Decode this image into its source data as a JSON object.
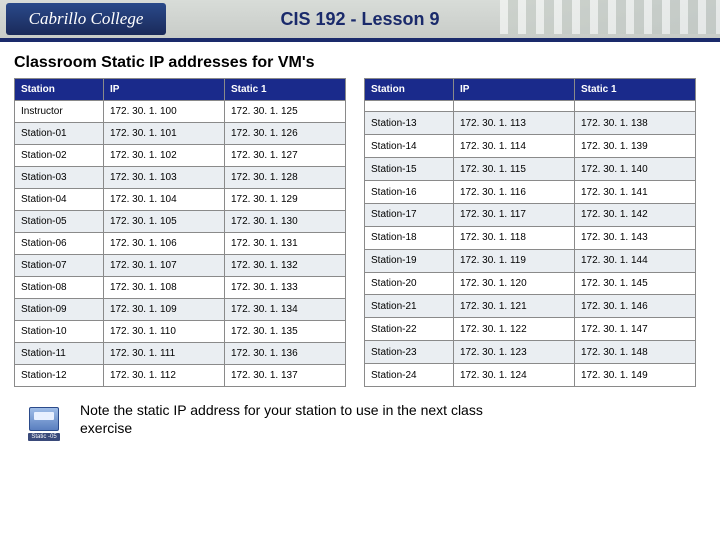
{
  "header": {
    "logo_text": "Cabrillo College",
    "title": "CIS 192 - Lesson 9"
  },
  "subtitle": "Classroom Static IP addresses for VM's",
  "columns": [
    "Station",
    "IP",
    "Static 1"
  ],
  "left_rows": [
    [
      "Instructor",
      "172. 30. 1. 100",
      "172. 30. 1. 125"
    ],
    [
      "Station-01",
      "172. 30. 1. 101",
      "172. 30. 1. 126"
    ],
    [
      "Station-02",
      "172. 30. 1. 102",
      "172. 30. 1. 127"
    ],
    [
      "Station-03",
      "172. 30. 1. 103",
      "172. 30. 1. 128"
    ],
    [
      "Station-04",
      "172. 30. 1. 104",
      "172. 30. 1. 129"
    ],
    [
      "Station-05",
      "172. 30. 1. 105",
      "172. 30. 1. 130"
    ],
    [
      "Station-06",
      "172. 30. 1. 106",
      "172. 30. 1. 131"
    ],
    [
      "Station-07",
      "172. 30. 1. 107",
      "172. 30. 1. 132"
    ],
    [
      "Station-08",
      "172. 30. 1. 108",
      "172. 30. 1. 133"
    ],
    [
      "Station-09",
      "172. 30. 1. 109",
      "172. 30. 1. 134"
    ],
    [
      "Station-10",
      "172. 30. 1. 110",
      "172. 30. 1. 135"
    ],
    [
      "Station-11",
      "172. 30. 1. 111",
      "172. 30. 1. 136"
    ],
    [
      "Station-12",
      "172. 30. 1. 112",
      "172. 30. 1. 137"
    ]
  ],
  "right_rows": [
    [
      "",
      "",
      ""
    ],
    [
      "Station-13",
      "172. 30. 1. 113",
      "172. 30. 1. 138"
    ],
    [
      "Station-14",
      "172. 30. 1. 114",
      "172. 30. 1. 139"
    ],
    [
      "Station-15",
      "172. 30. 1. 115",
      "172. 30. 1. 140"
    ],
    [
      "Station-16",
      "172. 30. 1. 116",
      "172. 30. 1. 141"
    ],
    [
      "Station-17",
      "172. 30. 1. 117",
      "172. 30. 1. 142"
    ],
    [
      "Station-18",
      "172. 30. 1. 118",
      "172. 30. 1. 143"
    ],
    [
      "Station-19",
      "172. 30. 1. 119",
      "172. 30. 1. 144"
    ],
    [
      "Station-20",
      "172. 30. 1. 120",
      "172. 30. 1. 145"
    ],
    [
      "Station-21",
      "172. 30. 1. 121",
      "172. 30. 1. 146"
    ],
    [
      "Station-22",
      "172. 30. 1. 122",
      "172. 30. 1. 147"
    ],
    [
      "Station-23",
      "172. 30. 1. 123",
      "172. 30. 1. 148"
    ],
    [
      "Station-24",
      "172. 30. 1. 124",
      "172. 30. 1. 149"
    ]
  ],
  "footer": {
    "icon_label": "Static -05",
    "note": "Note the static IP address for your station to use in the next class exercise"
  },
  "style": {
    "header_bg_top": "#d8dcd8",
    "header_bg_bottom": "#c8ccc8",
    "header_border": "#1a2a6b",
    "th_bg": "#1a2a8b",
    "th_color": "#ffffff",
    "row_alt_bg": "#eaeef2",
    "cell_border": "#8a8a8a",
    "title_color": "#1a2a6b",
    "body_font_size": 10,
    "subtitle_font_size": 16,
    "note_font_size": 14
  }
}
